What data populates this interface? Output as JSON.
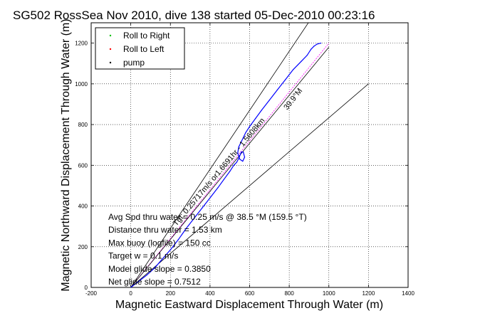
{
  "chart_data": {
    "type": "line",
    "title": "SG502 RossSea Nov 2010, dive 138 started 05-Dec-2010 00:23:16",
    "xlabel": "Magnetic Eastward Displacement Through Water (m)",
    "ylabel": "Magnetic Northward Displacement Through Water (m)",
    "xlim": [
      -200,
      1400
    ],
    "ylim": [
      0,
      1300
    ],
    "xticks": [
      -200,
      0,
      200,
      400,
      600,
      800,
      1000,
      1200,
      1400
    ],
    "yticks": [
      0,
      200,
      400,
      600,
      800,
      1000,
      1200
    ],
    "grid": true,
    "legend": {
      "placement": "top-left",
      "entries": [
        {
          "label": "Roll to Right",
          "color": "#00c000",
          "marker": "dot"
        },
        {
          "label": "Roll to Left",
          "color": "#ff0000",
          "marker": "dot"
        },
        {
          "label": "pump",
          "color": "#000000",
          "marker": "dot"
        }
      ]
    },
    "series": [
      {
        "color": "#0000ff",
        "x": [
          0,
          40,
          80,
          120,
          160,
          200,
          240,
          280,
          320,
          360,
          400,
          440,
          470,
          500,
          520,
          535,
          548,
          558,
          568,
          575,
          565,
          550,
          540,
          545,
          560,
          580,
          600,
          630,
          660,
          700,
          740,
          780,
          820,
          860,
          890,
          910,
          925,
          940,
          960
        ],
        "y": [
          0,
          30,
          60,
          95,
          140,
          185,
          235,
          290,
          340,
          390,
          440,
          490,
          530,
          570,
          600,
          615,
          640,
          665,
          665,
          640,
          620,
          630,
          660,
          690,
          720,
          760,
          790,
          830,
          870,
          920,
          970,
          1020,
          1070,
          1110,
          1140,
          1170,
          1185,
          1195,
          1200
        ]
      }
    ],
    "guide_lines": [
      {
        "color": "#ff00ff",
        "style": "dashed",
        "x": [
          0,
          1000
        ],
        "y": [
          0,
          1200
        ]
      },
      {
        "color": "#000000",
        "x": [
          0,
          1000
        ],
        "y": [
          0,
          1450
        ]
      },
      {
        "color": "#000000",
        "x": [
          0,
          1200
        ],
        "y": [
          0,
          1000
        ]
      },
      {
        "color": "#000000",
        "x": [
          0,
          1000
        ],
        "y": [
          0,
          1180
        ]
      }
    ],
    "annotations": [
      {
        "text": "39.9°M",
        "x": 790,
        "y": 870,
        "angle": -52
      },
      {
        "text": "Tgt: 0.25717m/s or1.6691hr - 1.5608km",
        "x": 230,
        "y": 300,
        "angle": -50
      }
    ],
    "stats": [
      "Avg Spd thru water = 0.25 m/s @  38.5   °M (159.5 °T)",
      "Distance thru water = 1.53 km",
      "Max buoy (logfile) = 150 cc",
      "Target w = 0.1 m/s",
      "Model glide slope = 0.3850",
      "Net glide slope = 0.7512"
    ]
  }
}
